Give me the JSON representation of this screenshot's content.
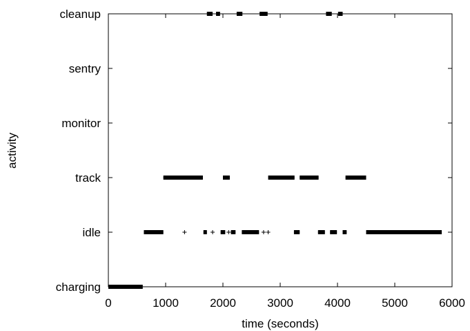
{
  "chart_data": {
    "type": "scatter",
    "xlabel": "time (seconds)",
    "ylabel": "activity",
    "xlim": [
      0,
      6000
    ],
    "x_ticks": [
      0,
      1000,
      2000,
      3000,
      4000,
      5000,
      6000
    ],
    "categories": [
      "charging",
      "idle",
      "track",
      "monitor",
      "sentry",
      "cleanup"
    ],
    "grid": false,
    "colors": {
      "axis": "#000000",
      "marker": "#000000"
    },
    "segments": [
      {
        "activity": "charging",
        "start": 0,
        "end": 600
      },
      {
        "activity": "idle",
        "start": 620,
        "end": 960
      },
      {
        "activity": "idle",
        "start": 1660,
        "end": 1720
      },
      {
        "activity": "idle",
        "start": 1960,
        "end": 2040
      },
      {
        "activity": "idle",
        "start": 2140,
        "end": 2220
      },
      {
        "activity": "idle",
        "start": 2330,
        "end": 2630
      },
      {
        "activity": "idle",
        "start": 3240,
        "end": 3340
      },
      {
        "activity": "idle",
        "start": 3660,
        "end": 3780
      },
      {
        "activity": "idle",
        "start": 3870,
        "end": 3990
      },
      {
        "activity": "idle",
        "start": 4090,
        "end": 4160
      },
      {
        "activity": "idle",
        "start": 4500,
        "end": 5820
      },
      {
        "activity": "track",
        "start": 960,
        "end": 1650
      },
      {
        "activity": "track",
        "start": 2000,
        "end": 2120
      },
      {
        "activity": "track",
        "start": 2790,
        "end": 3250
      },
      {
        "activity": "track",
        "start": 3340,
        "end": 3670
      },
      {
        "activity": "track",
        "start": 4140,
        "end": 4500
      },
      {
        "activity": "cleanup",
        "start": 1720,
        "end": 1820
      },
      {
        "activity": "cleanup",
        "start": 1880,
        "end": 1950
      },
      {
        "activity": "cleanup",
        "start": 2240,
        "end": 2340
      },
      {
        "activity": "cleanup",
        "start": 2640,
        "end": 2780
      },
      {
        "activity": "cleanup",
        "start": 3800,
        "end": 3900
      },
      {
        "activity": "cleanup",
        "start": 4010,
        "end": 4090
      }
    ],
    "points": [
      {
        "activity": "idle",
        "x": 1330
      },
      {
        "activity": "idle",
        "x": 1820
      },
      {
        "activity": "idle",
        "x": 2100
      },
      {
        "activity": "idle",
        "x": 2710
      },
      {
        "activity": "idle",
        "x": 2790
      }
    ]
  }
}
